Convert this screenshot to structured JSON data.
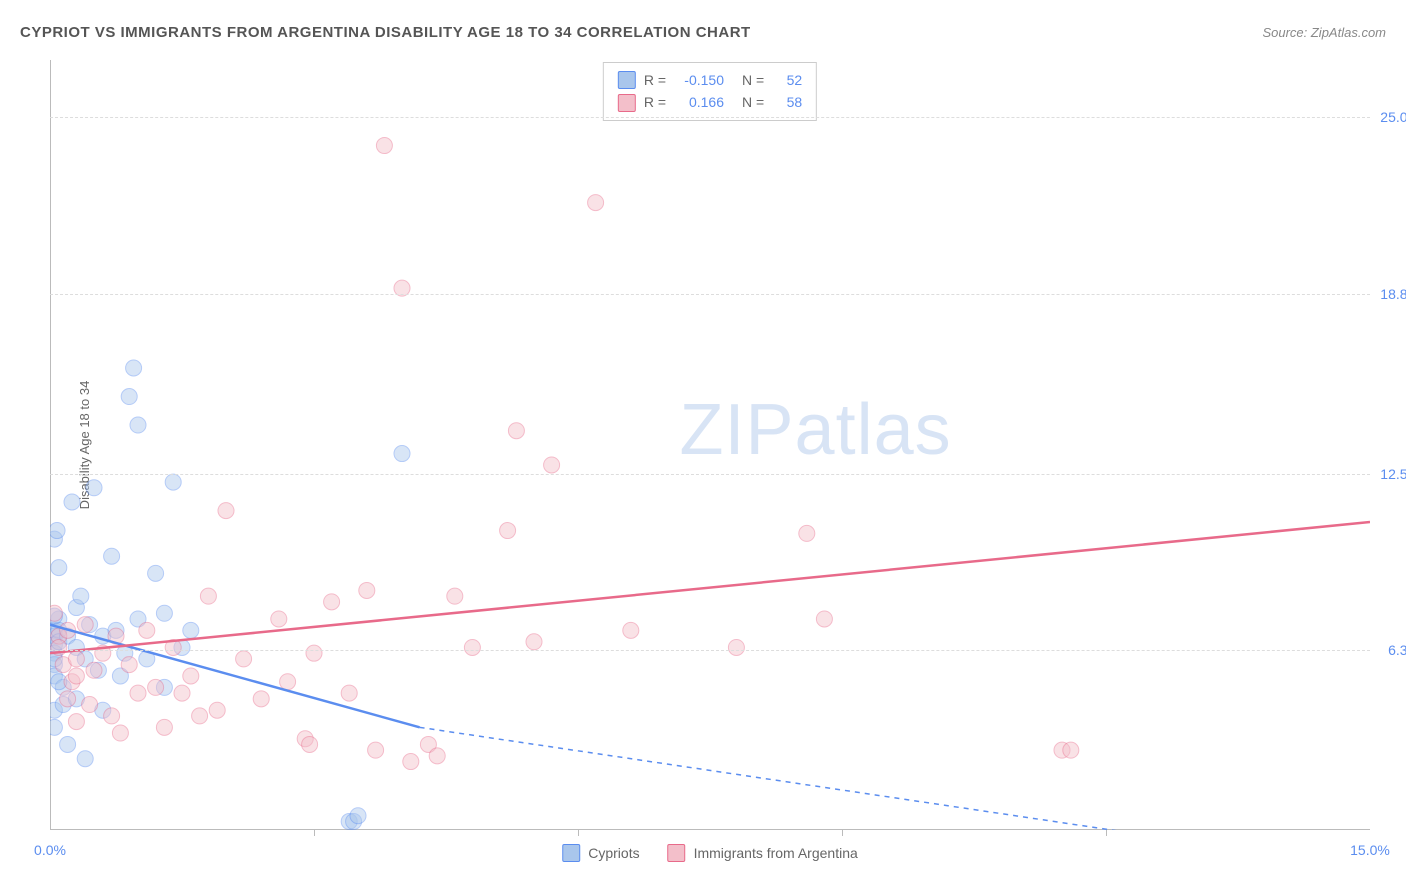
{
  "header": {
    "title": "CYPRIOT VS IMMIGRANTS FROM ARGENTINA DISABILITY AGE 18 TO 34 CORRELATION CHART",
    "source": "Source: ZipAtlas.com"
  },
  "watermark": {
    "bold": "ZIP",
    "light": "atlas"
  },
  "chart": {
    "type": "scatter",
    "ylabel": "Disability Age 18 to 34",
    "background_color": "#ffffff",
    "grid_color": "#dddddd",
    "axis_color": "#bbbbbb",
    "tick_color": "#5b8def",
    "label_color": "#666666",
    "title_color": "#555555",
    "title_fontsize": 15,
    "tick_fontsize": 14,
    "label_fontsize": 13,
    "xlim": [
      0,
      15
    ],
    "ylim": [
      0,
      27
    ],
    "xticks": [
      {
        "v": 0,
        "label": "0.0%"
      },
      {
        "v": 15,
        "label": "15.0%"
      }
    ],
    "xtick_marks": [
      3,
      6,
      9,
      12
    ],
    "yticks": [
      {
        "v": 6.3,
        "label": "6.3%"
      },
      {
        "v": 12.5,
        "label": "12.5%"
      },
      {
        "v": 18.8,
        "label": "18.8%"
      },
      {
        "v": 25.0,
        "label": "25.0%"
      }
    ],
    "marker_radius": 8,
    "marker_opacity": 0.45,
    "series": [
      {
        "name": "Cypriots",
        "color_fill": "#a9c6ec",
        "color_stroke": "#5b8def",
        "trend": {
          "x1": 0,
          "y1": 7.2,
          "x2": 4.2,
          "y2": 3.6,
          "dash_x2": 12.5,
          "dash_y2": -0.2
        },
        "stats": {
          "R": "-0.150",
          "N": "52"
        },
        "points": [
          [
            0.05,
            7.0
          ],
          [
            0.05,
            6.8
          ],
          [
            0.05,
            6.5
          ],
          [
            0.05,
            6.2
          ],
          [
            0.05,
            5.8
          ],
          [
            0.05,
            5.4
          ],
          [
            0.05,
            4.2
          ],
          [
            0.05,
            3.6
          ],
          [
            0.05,
            10.2
          ],
          [
            0.08,
            10.5
          ],
          [
            0.1,
            7.4
          ],
          [
            0.1,
            7.0
          ],
          [
            0.1,
            6.6
          ],
          [
            0.1,
            9.2
          ],
          [
            0.15,
            5.0
          ],
          [
            0.15,
            4.4
          ],
          [
            0.2,
            6.8
          ],
          [
            0.2,
            3.0
          ],
          [
            0.25,
            11.5
          ],
          [
            0.3,
            6.4
          ],
          [
            0.3,
            7.8
          ],
          [
            0.3,
            4.6
          ],
          [
            0.35,
            8.2
          ],
          [
            0.4,
            6.0
          ],
          [
            0.4,
            2.5
          ],
          [
            0.45,
            7.2
          ],
          [
            0.5,
            12.0
          ],
          [
            0.55,
            5.6
          ],
          [
            0.6,
            6.8
          ],
          [
            0.6,
            4.2
          ],
          [
            0.7,
            9.6
          ],
          [
            0.75,
            7.0
          ],
          [
            0.8,
            5.4
          ],
          [
            0.85,
            6.2
          ],
          [
            0.9,
            15.2
          ],
          [
            0.95,
            16.2
          ],
          [
            1.0,
            14.2
          ],
          [
            1.0,
            7.4
          ],
          [
            1.1,
            6.0
          ],
          [
            1.2,
            9.0
          ],
          [
            1.3,
            7.6
          ],
          [
            1.3,
            5.0
          ],
          [
            1.4,
            12.2
          ],
          [
            1.5,
            6.4
          ],
          [
            1.6,
            7.0
          ],
          [
            3.4,
            0.3
          ],
          [
            3.45,
            0.3
          ],
          [
            3.5,
            0.5
          ],
          [
            4.0,
            13.2
          ],
          [
            0.05,
            7.5
          ],
          [
            0.05,
            6.0
          ],
          [
            0.1,
            5.2
          ]
        ]
      },
      {
        "name": "Immigrants from Argentina",
        "color_fill": "#f3bfca",
        "color_stroke": "#e86a8a",
        "trend": {
          "x1": 0,
          "y1": 6.2,
          "x2": 15,
          "y2": 10.8
        },
        "stats": {
          "R": "0.166",
          "N": "58"
        },
        "points": [
          [
            0.1,
            6.8
          ],
          [
            0.1,
            6.4
          ],
          [
            0.15,
            5.8
          ],
          [
            0.2,
            7.0
          ],
          [
            0.2,
            4.6
          ],
          [
            0.25,
            5.2
          ],
          [
            0.3,
            6.0
          ],
          [
            0.3,
            3.8
          ],
          [
            0.4,
            7.2
          ],
          [
            0.45,
            4.4
          ],
          [
            0.5,
            5.6
          ],
          [
            0.6,
            6.2
          ],
          [
            0.7,
            4.0
          ],
          [
            0.75,
            6.8
          ],
          [
            0.8,
            3.4
          ],
          [
            0.9,
            5.8
          ],
          [
            1.0,
            4.8
          ],
          [
            1.1,
            7.0
          ],
          [
            1.2,
            5.0
          ],
          [
            1.3,
            3.6
          ],
          [
            1.4,
            6.4
          ],
          [
            1.5,
            4.8
          ],
          [
            1.6,
            5.4
          ],
          [
            1.8,
            8.2
          ],
          [
            1.9,
            4.2
          ],
          [
            2.0,
            11.2
          ],
          [
            2.2,
            6.0
          ],
          [
            2.4,
            4.6
          ],
          [
            2.6,
            7.4
          ],
          [
            2.7,
            5.2
          ],
          [
            2.9,
            3.2
          ],
          [
            2.95,
            3.0
          ],
          [
            3.0,
            6.2
          ],
          [
            3.2,
            8.0
          ],
          [
            3.6,
            8.4
          ],
          [
            3.7,
            2.8
          ],
          [
            3.8,
            24.0
          ],
          [
            4.0,
            19.0
          ],
          [
            4.1,
            2.4
          ],
          [
            4.3,
            3.0
          ],
          [
            4.4,
            2.6
          ],
          [
            4.6,
            8.2
          ],
          [
            4.8,
            6.4
          ],
          [
            5.2,
            10.5
          ],
          [
            5.3,
            14.0
          ],
          [
            5.5,
            6.6
          ],
          [
            5.7,
            12.8
          ],
          [
            6.2,
            22.0
          ],
          [
            6.6,
            7.0
          ],
          [
            7.8,
            6.4
          ],
          [
            8.6,
            10.4
          ],
          [
            8.8,
            7.4
          ],
          [
            11.5,
            2.8
          ],
          [
            11.6,
            2.8
          ],
          [
            0.05,
            7.6
          ],
          [
            0.3,
            5.4
          ],
          [
            1.7,
            4.0
          ],
          [
            3.4,
            4.8
          ]
        ]
      }
    ],
    "legend_bottom": [
      {
        "label": "Cypriots",
        "fill": "#a9c6ec",
        "stroke": "#5b8def"
      },
      {
        "label": "Immigrants from Argentina",
        "fill": "#f3bfca",
        "stroke": "#e86a8a"
      }
    ]
  }
}
